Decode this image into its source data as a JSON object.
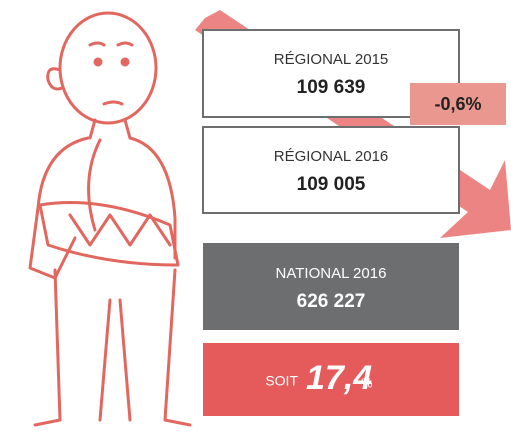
{
  "boxes": [
    {
      "label": "RÉGIONAL 2015",
      "value": "109 639"
    },
    {
      "label": "RÉGIONAL 2016",
      "value": "109 005"
    },
    {
      "label": "NATIONAL 2016",
      "value": "626 227"
    }
  ],
  "change": "-0,6%",
  "share": {
    "prefix": "SOIT",
    "value": "17,4",
    "unit": "%"
  }
}
